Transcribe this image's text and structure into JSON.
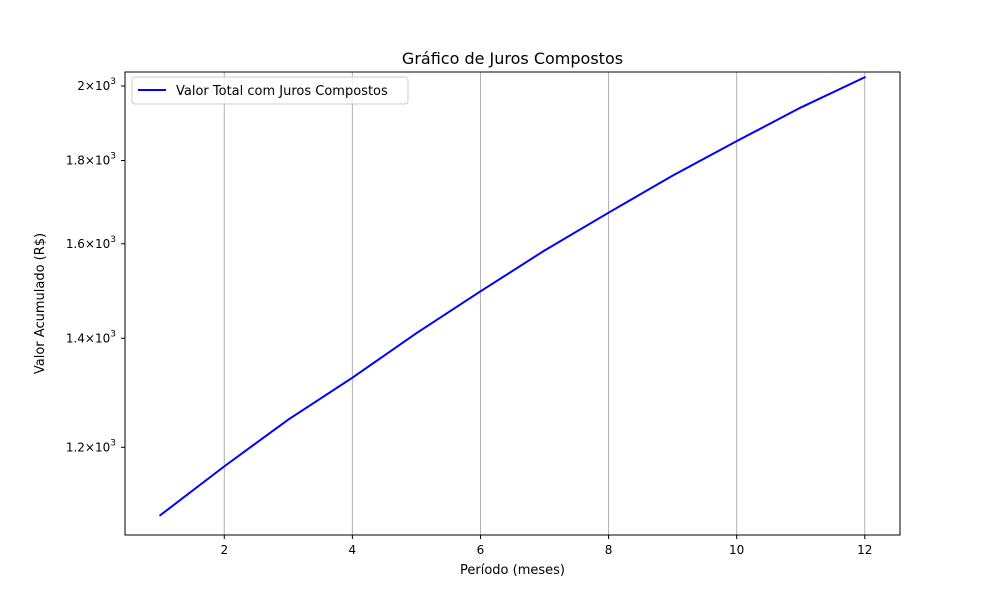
{
  "chart_data": {
    "type": "line",
    "title": "Gráfico de Juros Compostos",
    "xlabel": "Período (meses)",
    "ylabel": "Valor Acumulado (R$)",
    "yscale": "log",
    "xlim": [
      0.45,
      12.55
    ],
    "ylim": [
      1060,
      2040
    ],
    "grid": "x-only",
    "legend": "upper-left",
    "x_ticks": [
      2,
      4,
      6,
      8,
      10,
      12
    ],
    "x_tick_labels": [
      "2",
      "4",
      "6",
      "8",
      "10",
      "12"
    ],
    "y_ticks": [
      1200,
      1400,
      1600,
      1800,
      2000
    ],
    "y_tick_labels": [
      {
        "mant": "1.2",
        "base": "10",
        "exp": "3"
      },
      {
        "mant": "1.4",
        "base": "10",
        "exp": "3"
      },
      {
        "mant": "1.6",
        "base": "10",
        "exp": "3"
      },
      {
        "mant": "1.8",
        "base": "10",
        "exp": "3"
      },
      {
        "mant": "2",
        "base": "10",
        "exp": "3"
      }
    ],
    "x": [
      1,
      2,
      3,
      4,
      5,
      6,
      7,
      8,
      9,
      10,
      11,
      12
    ],
    "series": [
      {
        "name": "Valor Total com Juros Compostos",
        "color": "#0000ff",
        "values": [
          1090,
          1168,
          1248,
          1324,
          1410,
          1496,
          1585,
          1672,
          1762,
          1850,
          1940,
          2025
        ]
      }
    ]
  }
}
